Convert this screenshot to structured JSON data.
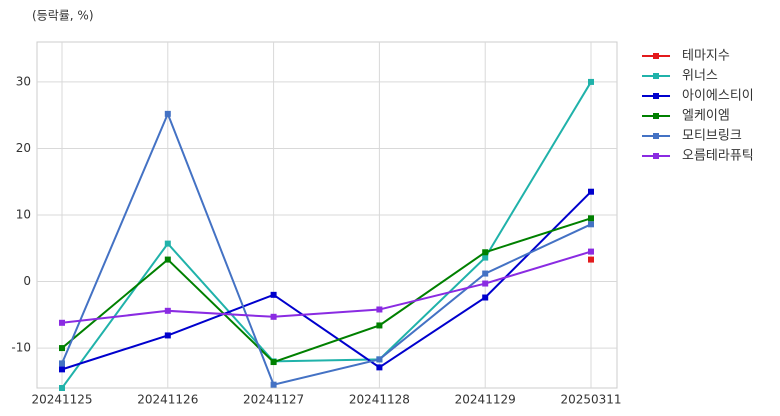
{
  "chart_data": {
    "type": "line",
    "annotation": "(등락률, %)",
    "categories": [
      "20241125",
      "20241126",
      "20241127",
      "20241128",
      "20241129",
      "20250311"
    ],
    "series": [
      {
        "name": "테마지수",
        "color": "#e31a1c",
        "values": [
          null,
          null,
          null,
          null,
          null,
          3.3
        ]
      },
      {
        "name": "위너스",
        "color": "#20b2aa",
        "values": [
          -16,
          5.7,
          -12,
          -11.7,
          3.6,
          30
        ]
      },
      {
        "name": "아이에스티이",
        "color": "#0000cd",
        "values": [
          -13.2,
          -8.1,
          -2,
          -12.9,
          -2.4,
          13.5
        ]
      },
      {
        "name": "엘케이엠",
        "color": "#008000",
        "values": [
          -10,
          3.3,
          -12.1,
          -6.6,
          4.4,
          9.5
        ]
      },
      {
        "name": "모티브링크",
        "color": "#4472c4",
        "values": [
          -12.3,
          25.2,
          -15.5,
          -11.7,
          1.2,
          8.6
        ]
      },
      {
        "name": "오름테라퓨틱",
        "color": "#8a2be2",
        "values": [
          -6.2,
          -4.4,
          -5.3,
          -4.2,
          -0.3,
          4.5
        ]
      }
    ],
    "ylim": [
      -16,
      36
    ],
    "yticks": [
      -10,
      0,
      10,
      20,
      30
    ],
    "grid": true,
    "legend": "right"
  }
}
